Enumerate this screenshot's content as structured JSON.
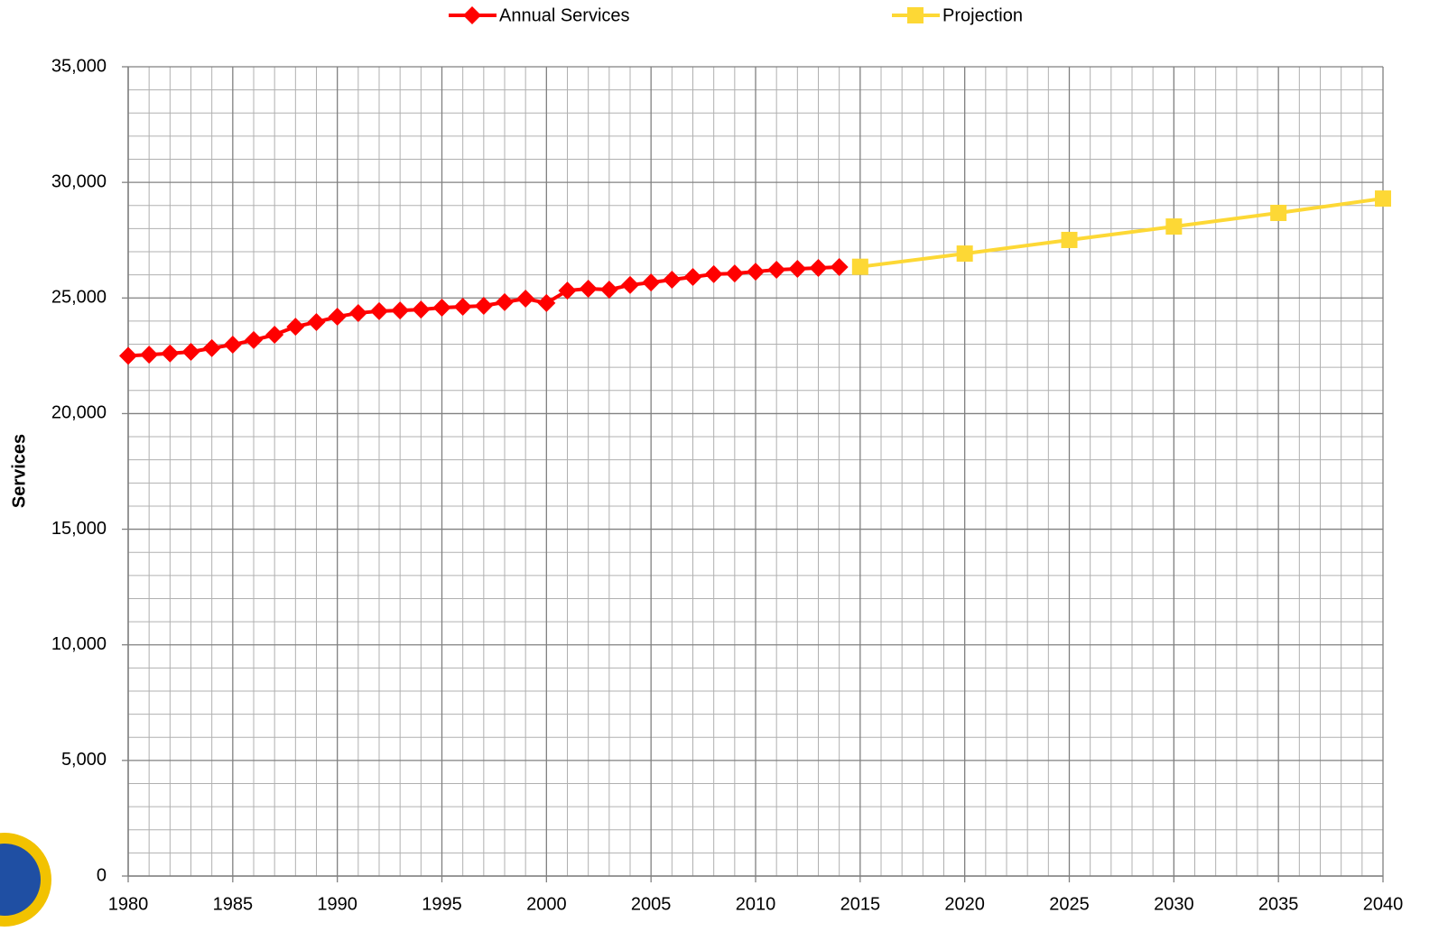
{
  "chart_data": {
    "type": "line",
    "ylabel": "Services",
    "xlim": [
      1980,
      2040
    ],
    "xticks": [
      1980,
      1985,
      1990,
      1995,
      2000,
      2005,
      2010,
      2015,
      2020,
      2025,
      2030,
      2035,
      2040
    ],
    "ylim": [
      0,
      35000
    ],
    "yticks": [
      0,
      {
        "value": 5000,
        "label": "5,000"
      },
      {
        "value": 10000,
        "label": "10,000"
      },
      {
        "value": 15000,
        "label": "15,000"
      },
      {
        "value": 20000,
        "label": "20,000"
      },
      {
        "value": 25000,
        "label": "25,000"
      },
      {
        "value": 30000,
        "label": "30,000"
      },
      {
        "value": 35000,
        "label": "35,000"
      }
    ],
    "grid": true,
    "legend": "top",
    "series": [
      {
        "name": "Annual Services",
        "color": "#ff0000",
        "marker": "diamond",
        "x": [
          1980,
          1981,
          1982,
          1983,
          1984,
          1985,
          1986,
          1987,
          1988,
          1989,
          1990,
          1991,
          1992,
          1993,
          1994,
          1995,
          1996,
          1997,
          1998,
          1999,
          2000,
          2001,
          2002,
          2003,
          2004,
          2005,
          2006,
          2007,
          2008,
          2009,
          2010,
          2011,
          2012,
          2013,
          2014
        ],
        "values": [
          22500,
          22550,
          22600,
          22670,
          22830,
          22980,
          23180,
          23410,
          23760,
          23960,
          24190,
          24350,
          24430,
          24460,
          24500,
          24580,
          24620,
          24660,
          24820,
          24970,
          24780,
          25320,
          25400,
          25360,
          25560,
          25670,
          25790,
          25910,
          26030,
          26060,
          26140,
          26220,
          26260,
          26300,
          26340
        ]
      },
      {
        "name": "Projection",
        "color": "#fdd835",
        "marker": "square",
        "x": [
          2015,
          2020,
          2025,
          2030,
          2035,
          2040
        ],
        "values": [
          26350,
          26920,
          27510,
          28090,
          28680,
          29300
        ]
      }
    ]
  }
}
